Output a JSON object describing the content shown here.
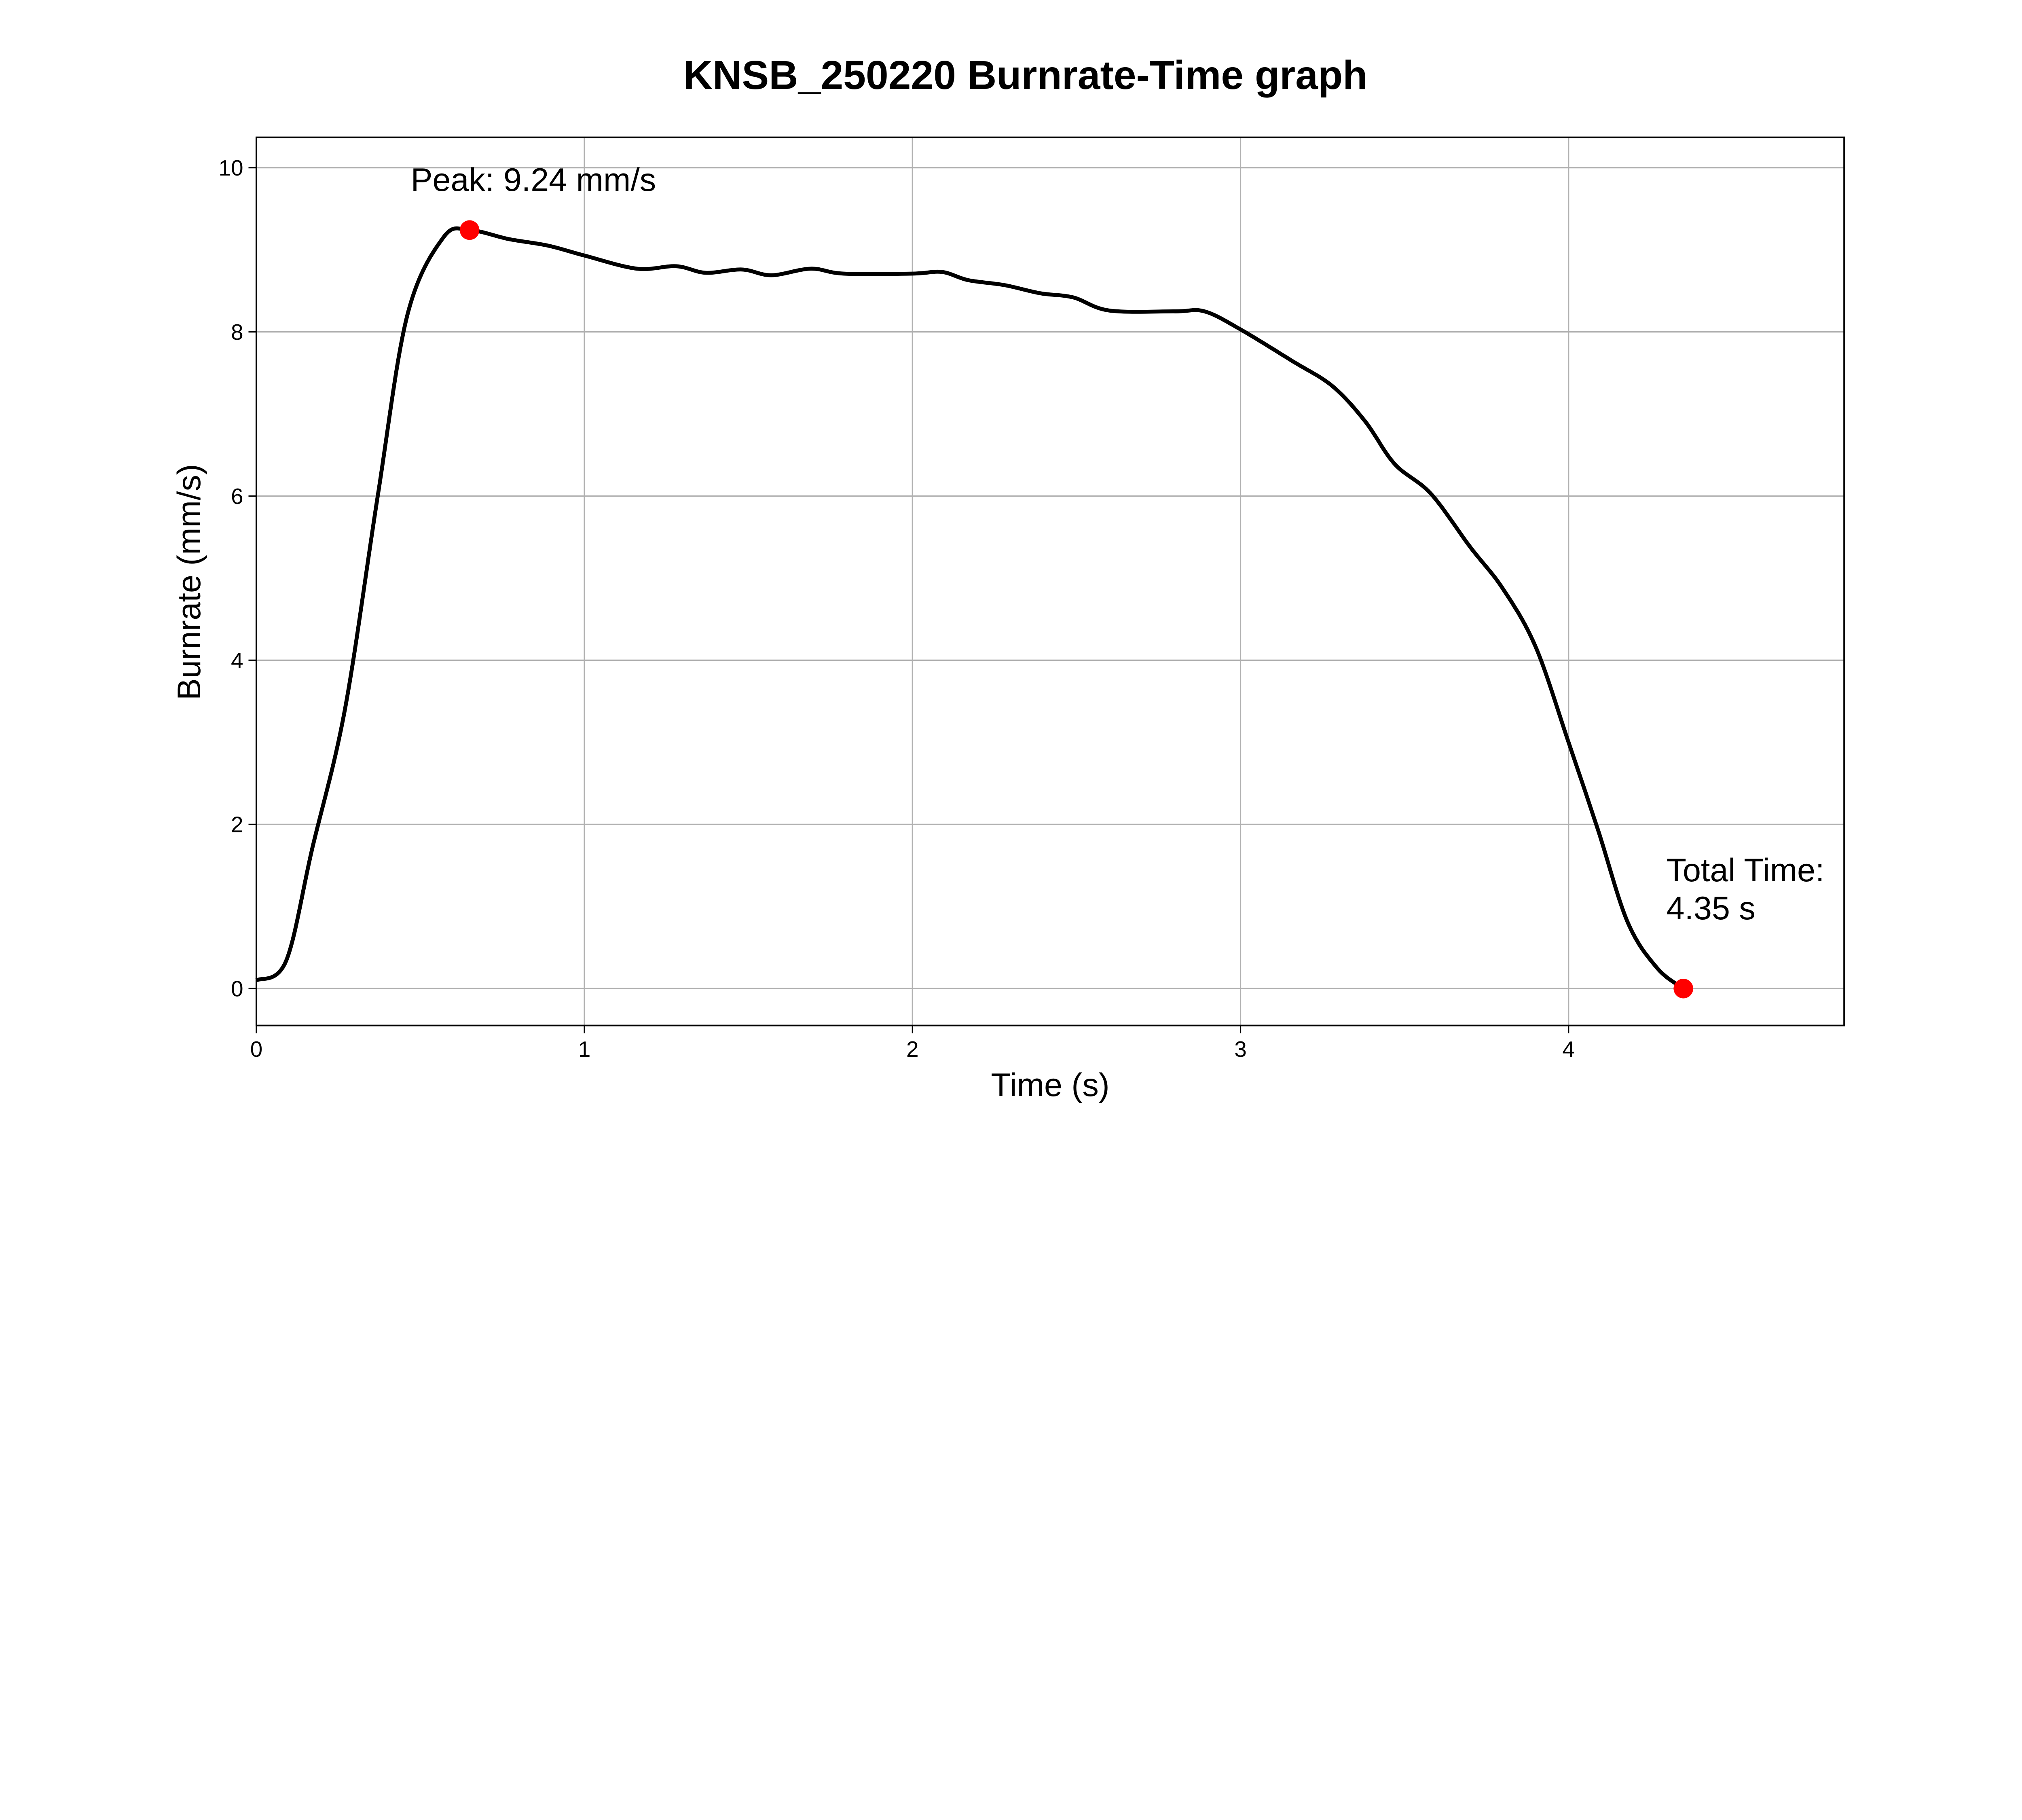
{
  "chart_data": {
    "type": "line",
    "title": "KNSB_250220 Burnrate-Time graph",
    "xlabel": "Time (s)",
    "ylabel": "Burnrate (mm/s)",
    "xlim": [
      0,
      4.84
    ],
    "ylim": [
      -0.45,
      10.37
    ],
    "xticks": [
      0,
      1,
      2,
      3,
      4
    ],
    "yticks": [
      0,
      2,
      4,
      6,
      8,
      10
    ],
    "grid": true,
    "line_color": "#000000",
    "marker_color": "#ff0000",
    "series": [
      {
        "x": [
          0,
          0.09,
          0.17,
          0.27,
          0.37,
          0.46,
          0.57,
          0.65,
          0.77,
          0.89,
          1.0,
          1.16,
          1.28,
          1.37,
          1.48,
          1.57,
          1.69,
          1.79,
          2.0,
          2.09,
          2.17,
          2.28,
          2.39,
          2.49,
          2.6,
          2.8,
          2.89,
          3.0,
          3.16,
          3.28,
          3.38,
          3.47,
          3.58,
          3.7,
          3.8,
          3.9,
          4.0,
          4.09,
          4.18,
          4.27,
          4.35
        ],
        "y": [
          0.1,
          0.33,
          1.7,
          3.4,
          6.0,
          8.2,
          9.15,
          9.24,
          9.13,
          9.05,
          8.93,
          8.77,
          8.8,
          8.72,
          8.76,
          8.69,
          8.77,
          8.71,
          8.71,
          8.73,
          8.63,
          8.57,
          8.47,
          8.42,
          8.26,
          8.25,
          8.25,
          8.03,
          7.64,
          7.34,
          6.91,
          6.39,
          6.03,
          5.38,
          4.87,
          4.16,
          3.0,
          1.93,
          0.81,
          0.25,
          0.0
        ]
      }
    ],
    "annotations": [
      {
        "name": "peak",
        "x": 0.65,
        "y": 9.24,
        "lines": [
          "Peak: 9.24 mm/s"
        ]
      },
      {
        "name": "total-time",
        "x": 4.35,
        "y": 0.0,
        "lines": [
          "Total Time:",
          "4.35 s"
        ]
      }
    ]
  }
}
